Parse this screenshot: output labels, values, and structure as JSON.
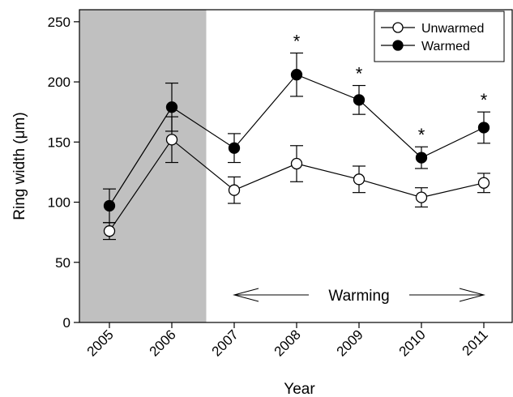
{
  "chart_data": {
    "type": "line",
    "xlabel": "Year",
    "ylabel": "Ring width (μm)",
    "ylim": [
      0,
      260
    ],
    "yticks": [
      "0",
      "50",
      "100",
      "150",
      "200",
      "250"
    ],
    "categories": [
      "2005",
      "2006",
      "2007",
      "2008",
      "2009",
      "2010",
      "2011"
    ],
    "series": [
      {
        "name": "Unwarmed",
        "marker": "open-circle",
        "values": [
          76,
          152,
          110,
          132,
          119,
          104,
          116
        ],
        "errors": [
          7,
          19,
          11,
          15,
          11,
          8,
          8
        ]
      },
      {
        "name": "Warmed",
        "marker": "filled-circle",
        "values": [
          97,
          179,
          145,
          206,
          185,
          137,
          162
        ],
        "errors": [
          14,
          20,
          12,
          18,
          12,
          9,
          13
        ]
      }
    ],
    "significance_marker": "*",
    "significant_categories": [
      "2008",
      "2009",
      "2010",
      "2011"
    ],
    "shaded_range": [
      "2005",
      "2006"
    ],
    "shade_color": "#c0c0c0",
    "annotation": {
      "text": "Warming",
      "from": "2007",
      "to": "2011"
    },
    "legend_position": "top-right",
    "grid": false
  }
}
